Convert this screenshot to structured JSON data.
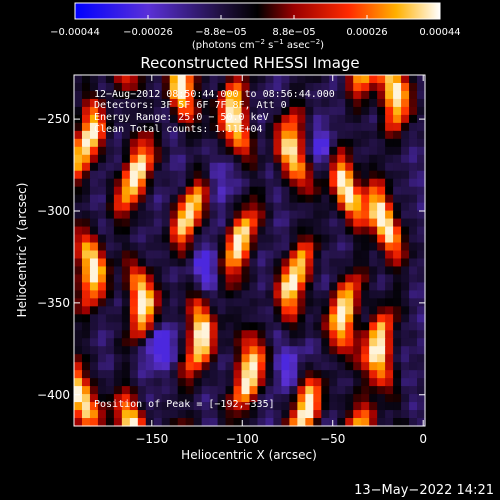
{
  "chart_data": {
    "type": "heatmap",
    "title": "Reconstructed RHESSI Image",
    "xlabel": "Heliocentric X (arcsec)",
    "ylabel": "Heliocentric Y (arcsec)",
    "xlim": [
      -193,
      1
    ],
    "ylim": [
      -417,
      -226
    ],
    "x_ticks": [
      -150,
      -100,
      -50,
      0
    ],
    "x_tick_labels": [
      "−150",
      "−100",
      "−50",
      "0"
    ],
    "y_ticks": [
      -250,
      -300,
      -350,
      -400
    ],
    "y_tick_labels": [
      "−250",
      "−300",
      "−350",
      "−400"
    ],
    "colorbar": {
      "range": [
        -0.00044,
        0.00044
      ],
      "tick_labels": [
        "−0.00044",
        "−0.00026",
        "−8.8e−05",
        "8.8e−05",
        "0.00026",
        "0.00044"
      ],
      "unit_main": "(photons cm",
      "unit_sup1": "−2",
      "unit_mid": " s",
      "unit_sup2": "−1",
      "unit_mid2": " asec",
      "unit_sup3": "−2",
      "unit_end": ")",
      "colors": [
        "#0000ff",
        "#6a3ad8",
        "#2a1a50",
        "#000000",
        "#a00000",
        "#ff2000",
        "#ff8c00",
        "#ffd000",
        "#ffffff"
      ]
    },
    "annotations": [
      "12−Aug−2012 08:50:44.000 to 08:56:44.000",
      "Detectors: 3F 5F 6F 7F 8F, Att 0",
      "Energy Range: 25.0 − 50.0 keV",
      "Clean    Total counts: 1.11E+04"
    ],
    "peak_label": "Position of Peak = [−192,−335]",
    "peak": [
      -192,
      -335
    ],
    "vertical_bright_bands_x": [
      -188,
      -160,
      -128,
      -100,
      -68,
      -40,
      -20
    ],
    "dim_blue_spots": [
      [
        -147,
        -373
      ],
      [
        -118,
        -330
      ],
      [
        -55,
        -268
      ],
      [
        -118,
        -283
      ],
      [
        -70,
        -385
      ]
    ]
  },
  "timestamp": "13−May−2022 14:21"
}
